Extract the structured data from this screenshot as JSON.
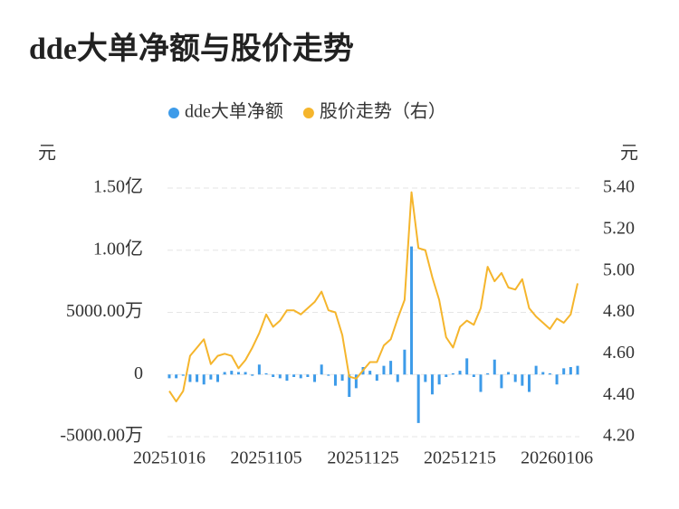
{
  "chart_data": {
    "type": "bar-line",
    "title": "dde大单净额与股价走势",
    "y_unit": "元",
    "y2_unit": "元",
    "categories": [
      "20251016",
      null,
      null,
      null,
      null,
      null,
      null,
      null,
      null,
      null,
      null,
      null,
      null,
      null,
      "20251105",
      null,
      null,
      null,
      null,
      null,
      null,
      null,
      null,
      null,
      null,
      null,
      null,
      null,
      "20251125",
      null,
      null,
      null,
      null,
      null,
      null,
      null,
      null,
      null,
      null,
      null,
      null,
      null,
      "20251215",
      null,
      null,
      null,
      null,
      null,
      null,
      null,
      null,
      null,
      null,
      null,
      null,
      null,
      "20260106",
      null,
      null,
      null
    ],
    "series": [
      {
        "name": "dde大单净额",
        "type": "bar",
        "color": "#3d9be9",
        "values": [
          -300,
          -300,
          -100,
          -600,
          -600,
          -800,
          -400,
          -600,
          200,
          300,
          200,
          200,
          -100,
          800,
          100,
          -200,
          -300,
          -500,
          -200,
          -300,
          -200,
          -600,
          800,
          -100,
          -900,
          -500,
          -1800,
          -1100,
          600,
          300,
          -500,
          700,
          1100,
          -600,
          2000,
          10300,
          -3900,
          -600,
          -1600,
          -800,
          -200,
          100,
          300,
          1300,
          -200,
          -1400,
          100,
          1200,
          -1100,
          200,
          -600,
          -900,
          -1400,
          700,
          200,
          100,
          -800,
          500,
          600,
          700
        ]
      },
      {
        "name": "股价走势（右）",
        "type": "line",
        "axis": "y2",
        "color": "#f5b52c",
        "values": [
          4.42,
          4.37,
          4.42,
          4.59,
          4.63,
          4.67,
          4.55,
          4.59,
          4.6,
          4.59,
          4.53,
          4.57,
          4.63,
          4.7,
          4.79,
          4.73,
          4.76,
          4.81,
          4.81,
          4.79,
          4.82,
          4.85,
          4.9,
          4.81,
          4.8,
          4.69,
          4.49,
          4.48,
          4.52,
          4.56,
          4.56,
          4.64,
          4.67,
          4.77,
          4.86,
          5.38,
          5.11,
          5.1,
          4.97,
          4.86,
          4.68,
          4.63,
          4.73,
          4.76,
          4.74,
          4.82,
          5.02,
          4.95,
          4.99,
          4.92,
          4.91,
          4.96,
          4.82,
          4.78,
          4.75,
          4.72,
          4.77,
          4.75,
          4.79,
          4.94
        ]
      }
    ],
    "ylim": [
      -5000,
      15000
    ],
    "yticks": [
      {
        "value": -5000,
        "label": "-5000.00万"
      },
      0,
      {
        "value": 5000,
        "label": "5000.00万"
      },
      {
        "value": 10000,
        "label": "1.00亿"
      },
      {
        "value": 15000,
        "label": "1.50亿"
      }
    ],
    "y2lim": [
      4.2,
      5.4
    ],
    "y2ticks": [
      {
        "value": 4.2,
        "label": "4.20"
      },
      {
        "value": 4.4,
        "label": "4.40"
      },
      {
        "value": 4.6,
        "label": "4.60"
      },
      {
        "value": 4.8,
        "label": "4.80"
      },
      {
        "value": 5.0,
        "label": "5.00"
      },
      {
        "value": 5.2,
        "label": "5.20"
      },
      {
        "value": 5.4,
        "label": "5.40"
      }
    ],
    "grid": true
  }
}
